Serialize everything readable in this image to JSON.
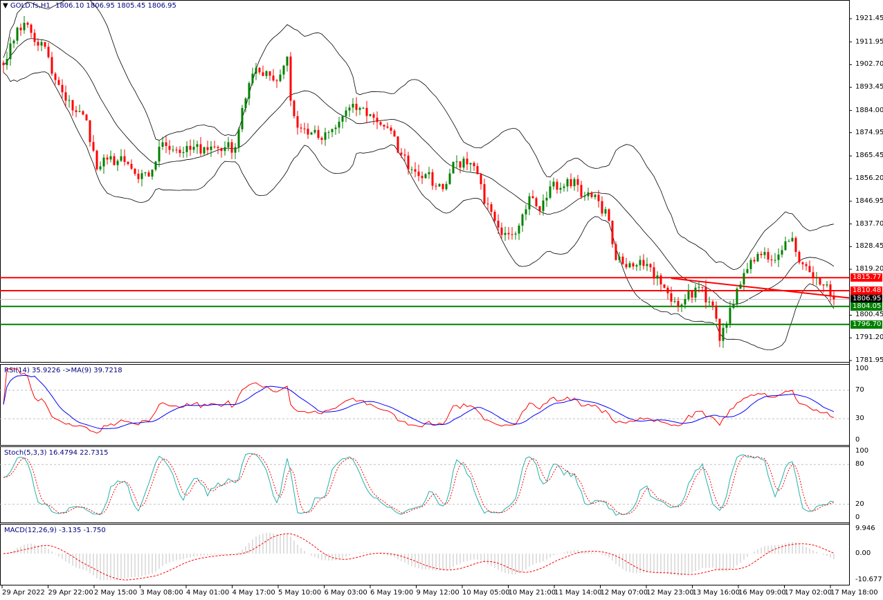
{
  "header": {
    "symbol": "GOLD.fs,H1",
    "ohlc": "1806.10 1806.95 1805.45 1806.95"
  },
  "rsi": {
    "label": "RSI(14) 35.9226  ->MA(9) 39.7218",
    "levels": [
      "100",
      "70",
      "30",
      "0"
    ]
  },
  "stoch": {
    "label": "Stoch(5,3,3) 16.4794 22.7315",
    "levels": [
      "100",
      "80",
      "20",
      "0"
    ]
  },
  "macd": {
    "label": "MACD(12,26,9) -3.135 -1.750",
    "levels": [
      "9.946",
      "0.00",
      "-10.677"
    ]
  },
  "price_axis": [
    "1921.45",
    "1911.95",
    "1902.70",
    "1893.45",
    "1884.00",
    "1874.95",
    "1865.45",
    "1856.20",
    "1846.95",
    "1837.70",
    "1828.45",
    "1819.20",
    "1800.45",
    "1791.20",
    "1781.95"
  ],
  "levels": {
    "r1": "1815.77",
    "r2": "1810.48",
    "current": "1806.95",
    "s1": "1804.05",
    "s2": "1796.70",
    "colors": {
      "resistance": "#ff0000",
      "support": "#008000",
      "current": "#000000",
      "bull": "#008000",
      "bear": "#ff0000"
    }
  },
  "time_axis": [
    "29 Apr 2022",
    "29 Apr 22:00",
    "2 May 15:00",
    "3 May 08:00",
    "4 May 01:00",
    "4 May 17:00",
    "5 May 10:00",
    "6 May 03:00",
    "6 May 19:00",
    "9 May 12:00",
    "10 May 05:00",
    "10 May 21:00",
    "11 May 14:00",
    "12 May 07:00",
    "12 May 23:00",
    "13 May 16:00",
    "16 May 09:00",
    "17 May 02:00",
    "17 May 18:00"
  ],
  "chart_data": {
    "type": "candlestick",
    "title": "GOLD.fs,H1",
    "ylim": [
      1781.95,
      1921.45
    ],
    "close_path": [
      [
        1,
        1905
      ],
      [
        4,
        1917.8
      ],
      [
        7,
        1919
      ],
      [
        9,
        1912
      ],
      [
        12,
        1910
      ],
      [
        14,
        1899
      ],
      [
        18,
        1888
      ],
      [
        24,
        1880
      ],
      [
        27,
        1860
      ],
      [
        30,
        1864
      ],
      [
        35,
        1863
      ],
      [
        39,
        1856
      ],
      [
        42,
        1857
      ],
      [
        46,
        1871
      ],
      [
        52,
        1867
      ],
      [
        58,
        1869
      ],
      [
        64,
        1869
      ],
      [
        67,
        1869
      ],
      [
        69,
        1885
      ],
      [
        72,
        1899
      ],
      [
        76,
        1900
      ],
      [
        79,
        1896
      ],
      [
        82,
        1906
      ],
      [
        83,
        1888
      ],
      [
        85,
        1877
      ],
      [
        89,
        1875
      ],
      [
        92,
        1872
      ],
      [
        96,
        1877
      ],
      [
        99,
        1884
      ],
      [
        103,
        1885
      ],
      [
        107,
        1881
      ],
      [
        111,
        1877
      ],
      [
        115,
        1866
      ],
      [
        118,
        1860
      ],
      [
        122,
        1858
      ],
      [
        125,
        1853
      ],
      [
        128,
        1854
      ],
      [
        130,
        1863
      ],
      [
        134,
        1862
      ],
      [
        137,
        1858
      ],
      [
        139,
        1846
      ],
      [
        142,
        1839
      ],
      [
        145,
        1834
      ],
      [
        149,
        1837
      ],
      [
        152,
        1849
      ],
      [
        155,
        1843
      ],
      [
        158,
        1853
      ],
      [
        162,
        1853
      ],
      [
        165,
        1856
      ],
      [
        168,
        1849
      ],
      [
        172,
        1847
      ],
      [
        175,
        1839
      ],
      [
        177,
        1823
      ],
      [
        180,
        1820
      ],
      [
        184,
        1823
      ],
      [
        187,
        1820
      ],
      [
        190,
        1813
      ],
      [
        193,
        1806
      ],
      [
        197,
        1807
      ],
      [
        201,
        1812
      ],
      [
        204,
        1806
      ],
      [
        206,
        1799
      ],
      [
        207,
        1790
      ],
      [
        209,
        1797
      ],
      [
        211,
        1805
      ],
      [
        213,
        1813
      ],
      [
        216,
        1823
      ],
      [
        219,
        1825
      ],
      [
        222,
        1823
      ],
      [
        225,
        1827
      ],
      [
        228,
        1832
      ],
      [
        230,
        1822
      ],
      [
        233,
        1818
      ],
      [
        236,
        1813
      ],
      [
        238,
        1813
      ],
      [
        240,
        1806.95
      ]
    ],
    "trendline": [
      [
        193,
        1815.5
      ],
      [
        245,
        1807.5
      ]
    ],
    "horizontal_levels": [
      1815.77,
      1810.48,
      1804.05,
      1796.7
    ],
    "indicators": [
      "Bollinger Bands(20,2)",
      "RSI(14)",
      "MA(9) of RSI",
      "Stochastic(5,3,3)",
      "MACD(12,26,9)"
    ]
  }
}
